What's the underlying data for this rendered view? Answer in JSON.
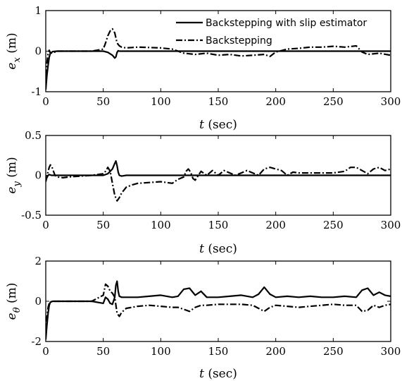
{
  "chart_data": [
    {
      "type": "line",
      "xlabel_var": "t",
      "xlabel_unit": "(sec)",
      "ylabel_var": "e",
      "ylabel_sub": "x",
      "ylabel_unit": "(m)",
      "xlim": [
        0,
        300
      ],
      "ylim": [
        -1,
        1
      ],
      "xticks": [
        0,
        50,
        100,
        150,
        200,
        250,
        300
      ],
      "yticks": [
        -1,
        0,
        1
      ],
      "legend_position": "top-right",
      "series": [
        {
          "name": "Backstepping with slip estimator",
          "style": "solid",
          "x": [
            0,
            1,
            2,
            3,
            4,
            6,
            10,
            20,
            30,
            40,
            50,
            54,
            58,
            60,
            61,
            62,
            63,
            64,
            66,
            70,
            80,
            100,
            150,
            200,
            250,
            280,
            290,
            300
          ],
          "y": [
            -0.95,
            -0.6,
            -0.35,
            -0.15,
            -0.05,
            -0.01,
            0,
            0,
            0,
            0,
            0,
            -0.03,
            -0.1,
            -0.17,
            -0.14,
            -0.03,
            0.01,
            0.0,
            0.0,
            0.0,
            0.0,
            0.0,
            0.0,
            0.0,
            0.0,
            0.0,
            0.0,
            0.0
          ]
        },
        {
          "name": "Backstepping",
          "style": "dashdot",
          "x": [
            0,
            1,
            2,
            3,
            4,
            6,
            8,
            10,
            20,
            30,
            40,
            50,
            52,
            54,
            56,
            58,
            60,
            62,
            64,
            66,
            70,
            80,
            90,
            100,
            110,
            120,
            130,
            140,
            150,
            160,
            170,
            180,
            190,
            195,
            200,
            210,
            220,
            230,
            240,
            250,
            260,
            270,
            275,
            280,
            290,
            300
          ],
          "y": [
            -0.9,
            -0.3,
            -0.05,
            0.02,
            -0.04,
            -0.05,
            -0.02,
            0,
            0,
            0,
            0,
            0.05,
            0.2,
            0.38,
            0.5,
            0.55,
            0.45,
            0.2,
            0.13,
            0.1,
            0.08,
            0.1,
            0.09,
            0.08,
            0.05,
            -0.05,
            -0.08,
            -0.05,
            -0.1,
            -0.08,
            -0.12,
            -0.1,
            -0.08,
            -0.13,
            -0.02,
            0.05,
            0.07,
            0.1,
            0.1,
            0.12,
            0.1,
            0.13,
            -0.02,
            -0.08,
            -0.05,
            -0.1
          ]
        }
      ]
    },
    {
      "type": "line",
      "xlabel_var": "t",
      "xlabel_unit": "(sec)",
      "ylabel_var": "e",
      "ylabel_sub": "y",
      "ylabel_unit": "(m)",
      "xlim": [
        0,
        300
      ],
      "ylim": [
        -0.5,
        0.5
      ],
      "xticks": [
        0,
        50,
        100,
        150,
        200,
        250,
        300
      ],
      "yticks": [
        -0.5,
        0,
        0.5
      ],
      "ytick_labels": [
        "-0.5",
        "0",
        "0.5"
      ],
      "series": [
        {
          "name": "Backstepping with slip estimator",
          "style": "solid",
          "x": [
            0,
            1,
            2,
            3,
            5,
            10,
            20,
            30,
            40,
            50,
            54,
            56,
            58,
            60,
            61,
            62,
            63,
            64,
            66,
            70,
            80,
            100,
            150,
            200,
            250,
            300
          ],
          "y": [
            -0.05,
            -0.03,
            0,
            0.01,
            0,
            0,
            0,
            0,
            0,
            0,
            0.02,
            0.05,
            0.08,
            0.15,
            0.18,
            0.12,
            0.04,
            0.0,
            -0.01,
            0,
            0,
            0,
            0,
            0,
            0,
            0
          ]
        },
        {
          "name": "Backstepping",
          "style": "dashdot",
          "x": [
            0,
            1,
            2,
            3,
            4,
            5,
            6,
            7,
            8,
            10,
            15,
            20,
            30,
            40,
            50,
            52,
            54,
            56,
            58,
            60,
            62,
            64,
            66,
            70,
            75,
            80,
            90,
            100,
            110,
            115,
            120,
            122,
            124,
            126,
            128,
            130,
            135,
            140,
            145,
            150,
            155,
            160,
            165,
            170,
            175,
            180,
            185,
            190,
            195,
            200,
            205,
            210,
            215,
            220,
            230,
            240,
            250,
            260,
            265,
            270,
            275,
            280,
            285,
            290,
            295,
            300
          ],
          "y": [
            -0.08,
            -0.02,
            0.05,
            0.1,
            0.13,
            0.12,
            0.08,
            0.04,
            0.0,
            -0.02,
            -0.03,
            -0.02,
            -0.01,
            0,
            0.02,
            0.05,
            0.1,
            0.05,
            -0.1,
            -0.25,
            -0.32,
            -0.28,
            -0.22,
            -0.15,
            -0.12,
            -0.1,
            -0.09,
            -0.08,
            -0.1,
            -0.05,
            -0.02,
            0.05,
            0.08,
            0.04,
            -0.04,
            -0.06,
            0.05,
            0.0,
            0.06,
            0.0,
            0.06,
            0.03,
            0.0,
            0.03,
            0.06,
            0.03,
            0.0,
            0.08,
            0.1,
            0.08,
            0.06,
            0.0,
            0.04,
            0.03,
            0.03,
            0.03,
            0.03,
            0.05,
            0.1,
            0.1,
            0.06,
            0.02,
            0.08,
            0.1,
            0.06,
            0.08
          ]
        }
      ]
    },
    {
      "type": "line",
      "xlabel_var": "t",
      "xlabel_unit": "(sec)",
      "ylabel_var": "e",
      "ylabel_sub": "θ",
      "ylabel_unit": "(m)",
      "xlim": [
        0,
        300
      ],
      "ylim": [
        -2,
        2
      ],
      "xticks": [
        0,
        50,
        100,
        150,
        200,
        250,
        300
      ],
      "yticks": [
        -2,
        0,
        2
      ],
      "series": [
        {
          "name": "Backstepping with slip estimator",
          "style": "solid",
          "x": [
            0,
            1,
            2,
            3,
            4,
            6,
            10,
            20,
            30,
            40,
            50,
            52,
            54,
            56,
            58,
            60,
            61,
            62,
            63,
            64,
            66,
            70,
            80,
            90,
            100,
            110,
            115,
            120,
            125,
            130,
            135,
            140,
            150,
            160,
            170,
            180,
            185,
            190,
            195,
            200,
            210,
            220,
            230,
            240,
            250,
            260,
            270,
            275,
            280,
            285,
            290,
            295,
            300
          ],
          "y": [
            -1.9,
            -1.2,
            -0.6,
            -0.2,
            -0.05,
            0,
            0,
            0,
            0,
            0,
            -0.1,
            0.2,
            0.1,
            -0.1,
            -0.15,
            0.2,
            0.8,
            1.0,
            0.5,
            0.25,
            0.2,
            0.2,
            0.2,
            0.25,
            0.3,
            0.2,
            0.25,
            0.6,
            0.65,
            0.3,
            0.5,
            0.2,
            0.2,
            0.25,
            0.3,
            0.2,
            0.35,
            0.7,
            0.35,
            0.2,
            0.25,
            0.2,
            0.25,
            0.2,
            0.2,
            0.25,
            0.2,
            0.55,
            0.65,
            0.3,
            0.45,
            0.3,
            0.25
          ]
        },
        {
          "name": "Backstepping",
          "style": "dashdot",
          "x": [
            0,
            1,
            2,
            3,
            4,
            6,
            10,
            20,
            30,
            40,
            50,
            52,
            54,
            56,
            58,
            60,
            62,
            64,
            66,
            70,
            80,
            90,
            100,
            110,
            115,
            120,
            125,
            130,
            135,
            140,
            150,
            160,
            170,
            180,
            185,
            190,
            195,
            200,
            210,
            220,
            230,
            240,
            250,
            260,
            270,
            275,
            280,
            285,
            290,
            295,
            300
          ],
          "y": [
            -1.6,
            -0.8,
            -0.3,
            -0.1,
            -0.03,
            0,
            0,
            0,
            0,
            0,
            0.3,
            0.85,
            0.75,
            0.5,
            0.4,
            0.2,
            -0.6,
            -0.75,
            -0.55,
            -0.35,
            -0.25,
            -0.2,
            -0.25,
            -0.3,
            -0.3,
            -0.4,
            -0.5,
            -0.3,
            -0.2,
            -0.2,
            -0.15,
            -0.15,
            -0.15,
            -0.2,
            -0.35,
            -0.5,
            -0.3,
            -0.2,
            -0.25,
            -0.3,
            -0.25,
            -0.2,
            -0.15,
            -0.2,
            -0.2,
            -0.5,
            -0.45,
            -0.2,
            -0.3,
            -0.2,
            -0.15
          ]
        }
      ]
    }
  ]
}
